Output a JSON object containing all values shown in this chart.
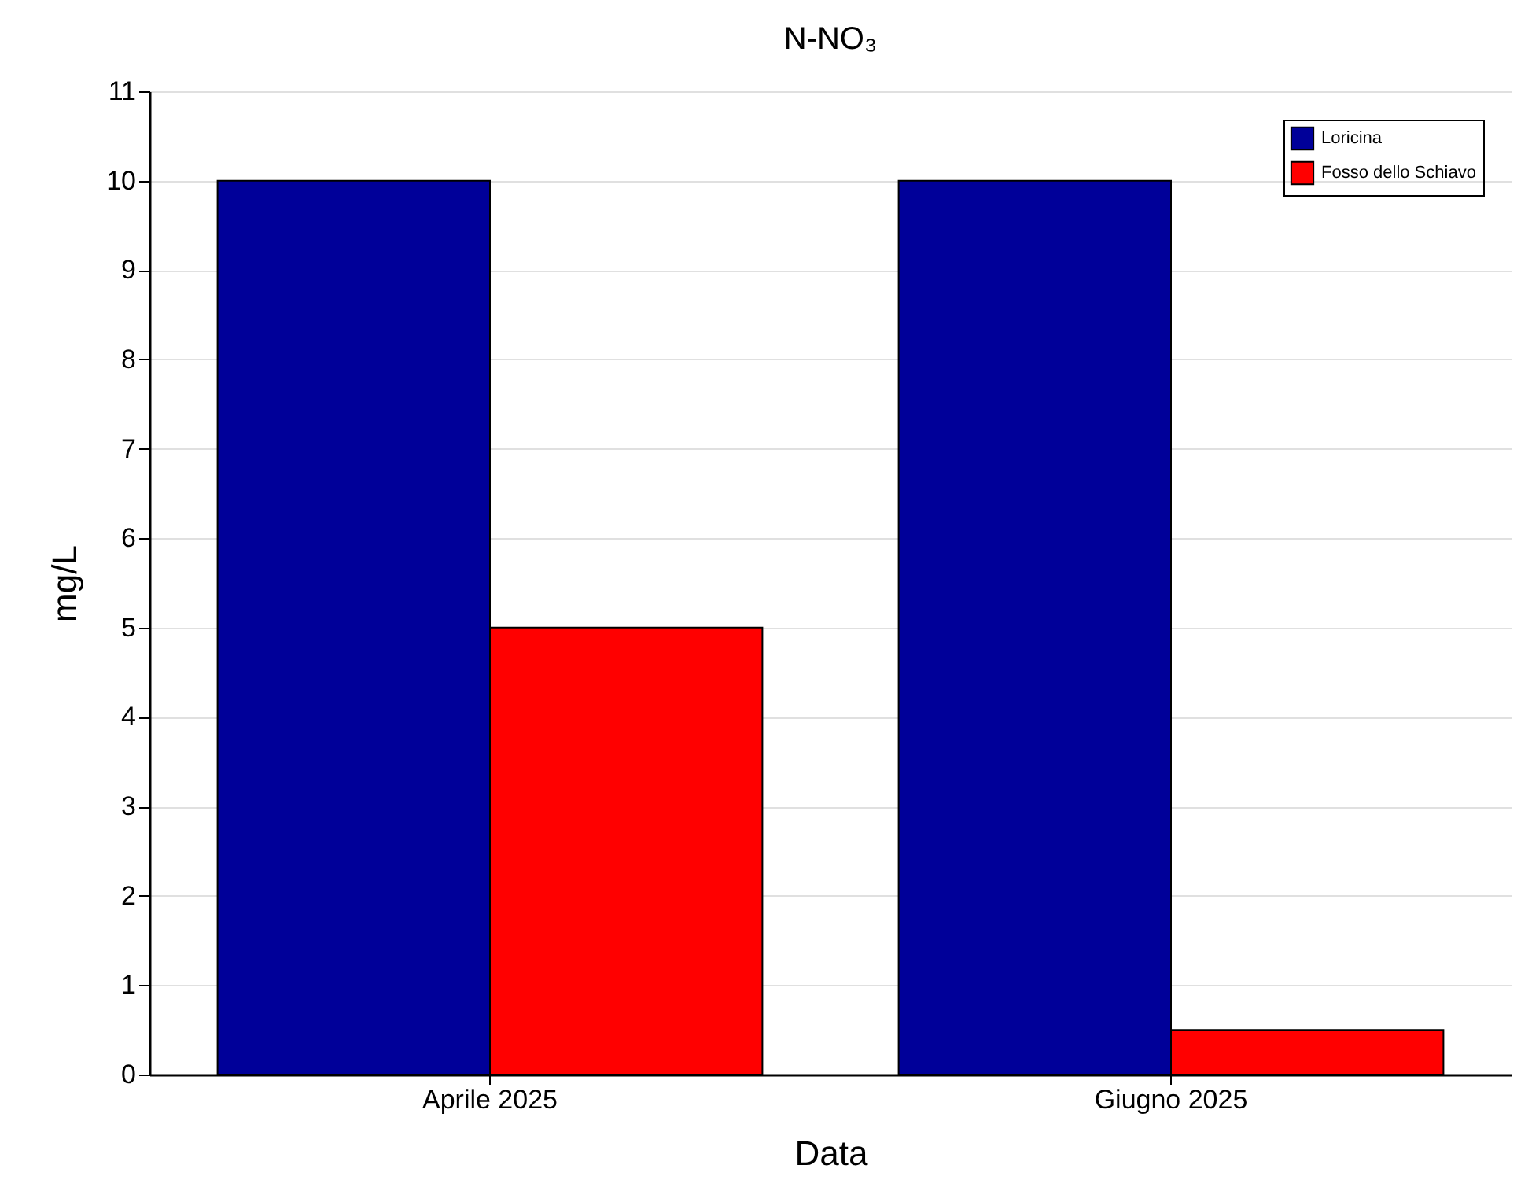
{
  "chart_data": {
    "type": "bar",
    "title": "N-NO₃",
    "xlabel": "Data",
    "ylabel": "mg/L",
    "categories": [
      "Aprile 2025",
      "Giugno 2025"
    ],
    "series": [
      {
        "name": "Loricina",
        "color": "#000099",
        "values": [
          10,
          10
        ]
      },
      {
        "name": "Fosso dello Schiavo",
        "color": "#ff0000",
        "values": [
          5,
          0.5
        ]
      }
    ],
    "ylim": [
      0,
      11
    ],
    "yticks": [
      0,
      1,
      2,
      3,
      4,
      5,
      6,
      7,
      8,
      9,
      10,
      11
    ],
    "grid": "y",
    "legend": "top right"
  }
}
